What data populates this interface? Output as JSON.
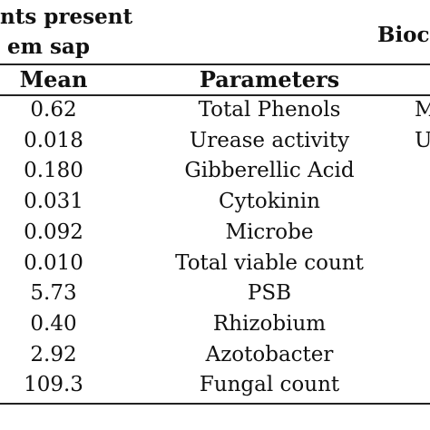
{
  "header": {
    "group1_line1": "nts present",
    "group1_line2": "em sap",
    "group2": "Bioc"
  },
  "columns": {
    "mean": "Mean",
    "parameters": "Parameters"
  },
  "rows": [
    {
      "mean": "0.62",
      "parameter": "Total Phenols",
      "partial": "M",
      "bold": false
    },
    {
      "mean": "0.018",
      "parameter": "Urease activity",
      "partial": "U",
      "bold": false
    },
    {
      "mean": "0.180",
      "parameter": "Gibberellic Acid",
      "partial": "",
      "bold": false
    },
    {
      "mean": "0.031",
      "parameter": "Cytokinin",
      "partial": "",
      "bold": false
    },
    {
      "mean": "0.092",
      "parameter": "Microbe",
      "partial": "",
      "bold": true
    },
    {
      "mean": "0.010",
      "parameter": "Total viable count",
      "partial": "",
      "bold": false
    },
    {
      "mean": "5.73",
      "parameter": "PSB",
      "partial": "",
      "bold": false
    },
    {
      "mean": "0.40",
      "parameter": "Rhizobium",
      "partial": "",
      "bold": false
    },
    {
      "mean": "2.92",
      "parameter": "Azotobacter",
      "partial": "",
      "bold": false
    },
    {
      "mean": "109.3",
      "parameter": "Fungal count",
      "partial": "",
      "bold": false
    }
  ]
}
